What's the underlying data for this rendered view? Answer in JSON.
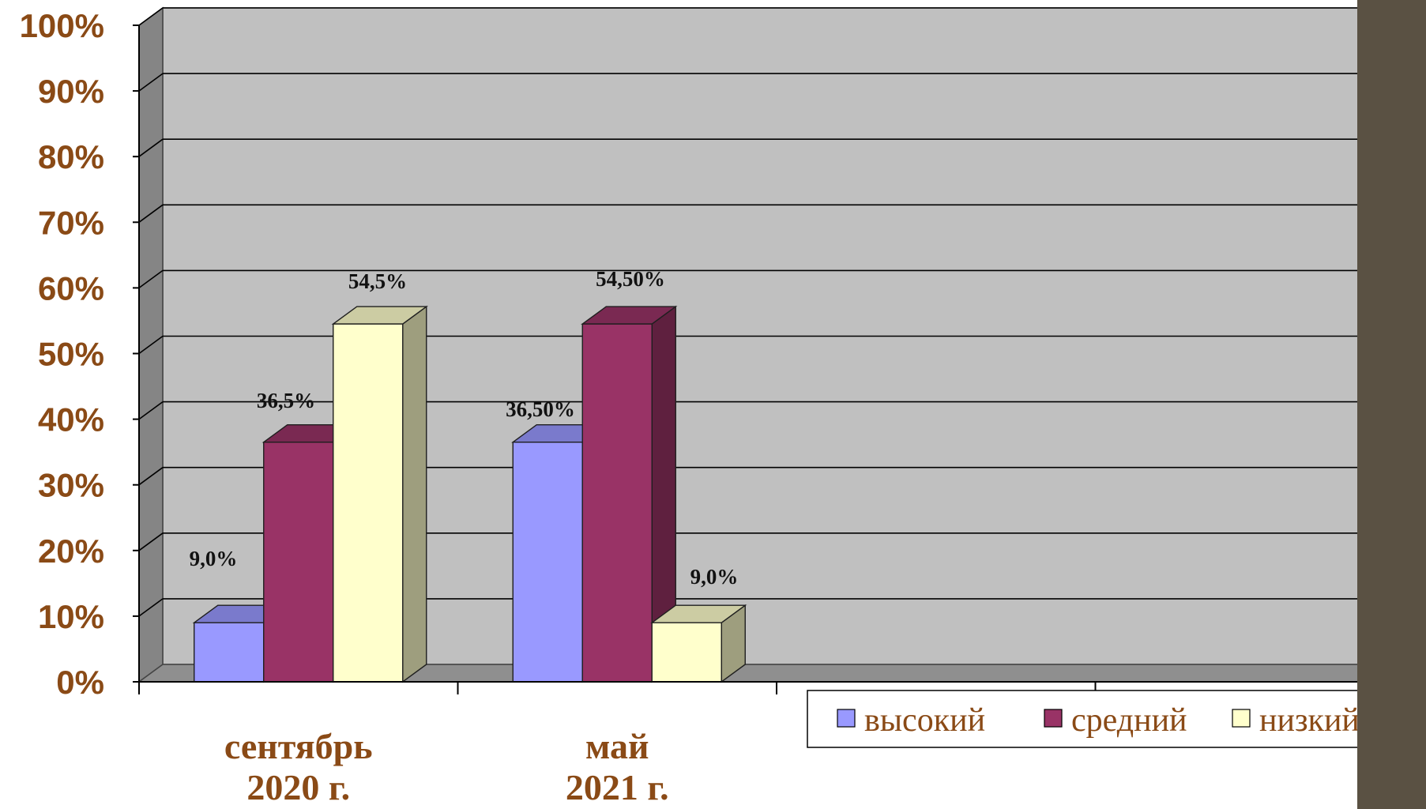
{
  "colors": {
    "wall": "#c0c0c0",
    "side_wall": "#858585",
    "floor": "#8f8f8f",
    "gridline": "#000000",
    "tick_text": "#8a4a16",
    "data_label": "#111111",
    "accent_dark": "#5a5143"
  },
  "chart_data": {
    "type": "bar",
    "three_d": true,
    "categories": [
      "сентябрь\n2020 г.",
      "май\n2021 г."
    ],
    "series": [
      {
        "name": "высокий",
        "color": "#9999ff",
        "values": [
          9.0,
          36.5
        ],
        "data_labels": [
          "9,0%",
          "36,50%"
        ]
      },
      {
        "name": "средний",
        "color": "#993366",
        "values": [
          36.5,
          54.5
        ],
        "data_labels": [
          "36,5%",
          "54,50%"
        ]
      },
      {
        "name": "низкий",
        "color": "#ffffcc",
        "values": [
          54.5,
          9.0
        ],
        "data_labels": [
          "54,5%",
          "9,0%"
        ]
      }
    ],
    "ylim": [
      0,
      100
    ],
    "yticks": [
      0,
      10,
      20,
      30,
      40,
      50,
      60,
      70,
      80,
      90,
      100
    ],
    "ytick_labels": [
      "0%",
      "10%",
      "20%",
      "30%",
      "40%",
      "50%",
      "60%",
      "70%",
      "80%",
      "90%",
      "100%"
    ],
    "grid": true,
    "legend_position": "bottom-right",
    "xlabel": "",
    "ylabel": ""
  }
}
